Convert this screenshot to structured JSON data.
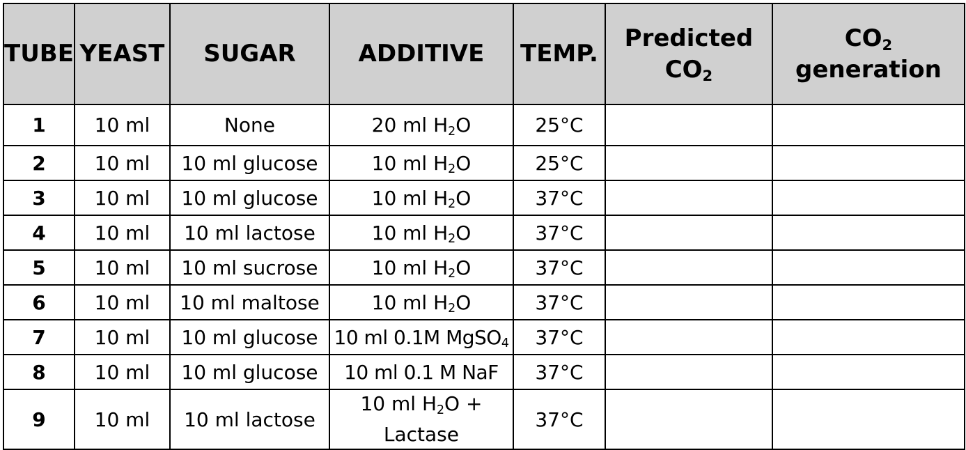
{
  "headers": {
    "tube": "TUBE",
    "yeast": "YEAST",
    "sugar": "SUGAR",
    "additive": "ADDITIVE",
    "temp": "TEMP.",
    "predicted_line1": "Predicted",
    "predicted_line2_main": "CO",
    "predicted_line2_sub": "2",
    "generation_line1_main": "CO",
    "generation_line1_sub": "2",
    "generation_line2": "generation"
  },
  "rows": [
    {
      "tube": "1",
      "yeast": "10 ml",
      "sugar": "None",
      "additive_pre": "20 ml H",
      "additive_sub": "2",
      "additive_post": "O",
      "temp": "25°C",
      "predicted": "",
      "generation": ""
    },
    {
      "tube": "2",
      "yeast": "10 ml",
      "sugar": "10 ml glucose",
      "additive_pre": "10 ml H",
      "additive_sub": "2",
      "additive_post": "O",
      "temp": "25°C",
      "predicted": "",
      "generation": ""
    },
    {
      "tube": "3",
      "yeast": "10 ml",
      "sugar": "10 ml glucose",
      "additive_pre": "10 ml H",
      "additive_sub": "2",
      "additive_post": "O",
      "temp": "37°C",
      "predicted": "",
      "generation": ""
    },
    {
      "tube": "4",
      "yeast": "10 ml",
      "sugar": "10 ml lactose",
      "additive_pre": "10 ml H",
      "additive_sub": "2",
      "additive_post": "O",
      "temp": "37°C",
      "predicted": "",
      "generation": ""
    },
    {
      "tube": "5",
      "yeast": "10 ml",
      "sugar": "10 ml sucrose",
      "additive_pre": "10 ml H",
      "additive_sub": "2",
      "additive_post": "O",
      "temp": "37°C",
      "predicted": "",
      "generation": ""
    },
    {
      "tube": "6",
      "yeast": "10 ml",
      "sugar": "10 ml maltose",
      "additive_pre": "10 ml H",
      "additive_sub": "2",
      "additive_post": "O",
      "temp": "37°C",
      "predicted": "",
      "generation": ""
    },
    {
      "tube": "7",
      "yeast": "10 ml",
      "sugar": "10 ml glucose",
      "additive_pre": "10 ml 0.1M MgSO",
      "additive_sub": "4",
      "additive_post": "",
      "temp": "37°C",
      "predicted": "",
      "generation": ""
    },
    {
      "tube": "8",
      "yeast": "10 ml",
      "sugar": "10 ml glucose",
      "additive_pre": "10 ml 0.1 M NaF",
      "additive_sub": "",
      "additive_post": "",
      "temp": "37°C",
      "predicted": "",
      "generation": ""
    },
    {
      "tube": "9",
      "yeast": "10 ml",
      "sugar": "10 ml lactose",
      "additive_pre": "10 ml H",
      "additive_sub": "2",
      "additive_post": "O +",
      "additive_line2": "Lactase",
      "temp": "37°C",
      "predicted": "",
      "generation": ""
    }
  ]
}
